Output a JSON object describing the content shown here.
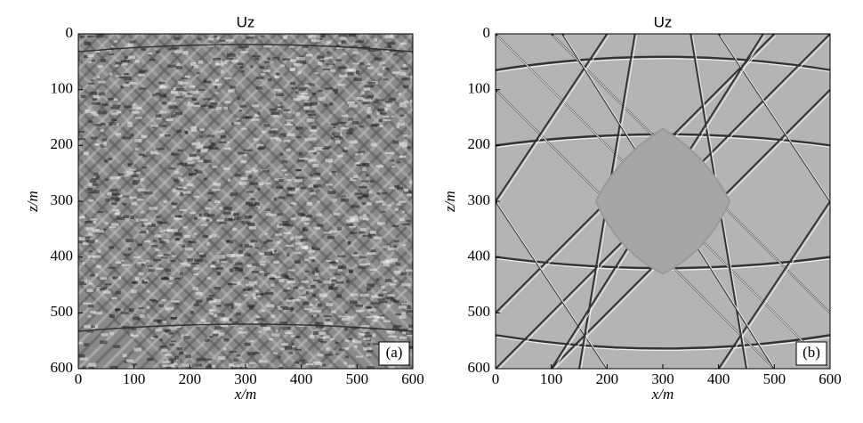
{
  "chart_data": [
    {
      "type": "image",
      "title": "Uz",
      "panel_label": "(a)",
      "xlabel": "x/m",
      "ylabel": "z/m",
      "xlim": [
        0,
        600
      ],
      "ylim": [
        0,
        600
      ],
      "invert_y": true,
      "xticks": [
        0,
        100,
        200,
        300,
        400,
        500,
        600
      ],
      "yticks": [
        0,
        100,
        200,
        300,
        400,
        500,
        600
      ],
      "texture": "noisy"
    },
    {
      "type": "image",
      "title": "Uz",
      "panel_label": "(b)",
      "xlabel": "x/m",
      "ylabel": "z/m",
      "xlim": [
        0,
        600
      ],
      "ylim": [
        0,
        600
      ],
      "invert_y": true,
      "xticks": [
        0,
        100,
        200,
        300,
        400,
        500,
        600
      ],
      "yticks": [
        0,
        100,
        200,
        300,
        400,
        500,
        600
      ],
      "texture": "clean"
    }
  ]
}
